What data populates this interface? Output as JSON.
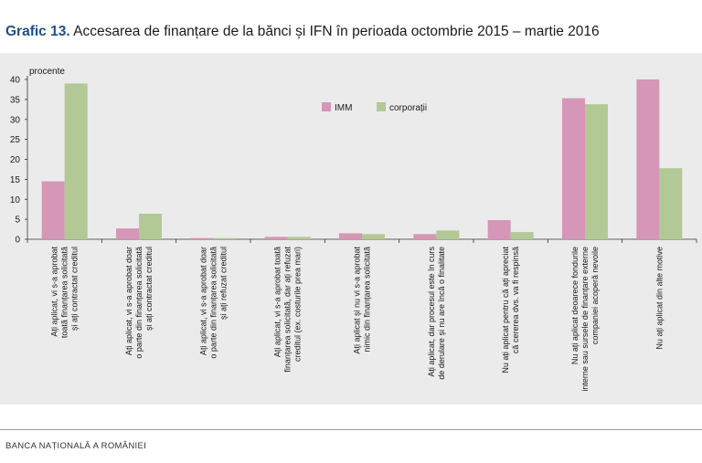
{
  "header": {
    "title_prefix": "Grafic 13.",
    "title_text": "Accesarea de finanțare de la bănci și IFN în perioada octombrie 2015 – martie 2016"
  },
  "footer": {
    "text": "BANCA NAȚIONALĂ A ROMÂNIEI"
  },
  "chart_data": {
    "type": "bar",
    "ylabel": "procente",
    "ylim": [
      0,
      40
    ],
    "yticks": [
      0,
      5,
      10,
      15,
      20,
      25,
      30,
      35,
      40
    ],
    "legend_position": "top-center",
    "categories": [
      [
        "Ați aplicat, vi s-a aprobat",
        "toată finanțarea solicitată",
        "și ați contractat creditul"
      ],
      [
        "Ați aplicat, vi s-a aprobat doar",
        "o parte din finanțarea solicitată",
        "și ați contractat creditul"
      ],
      [
        "Ați aplicat, vi s-a aprobat doar",
        "o parte din finanțarea solicitată",
        "și ați refuzat creditul"
      ],
      [
        "Ați aplicat, vi s-a aprobat toată",
        "finanțarea solicitată, dar ați refuzat",
        "creditul (ex. costurile prea mari)"
      ],
      [
        "Ați aplicat și nu vi s-a aprobat",
        "nimic din finanțarea solicitată"
      ],
      [
        "Ați aplicat, dar procesul este în curs",
        "de derulare și nu are încă o finalitate"
      ],
      [
        "Nu ați aplicat pentru că ați apreciat",
        "că cererea dvs. va fi respinsă"
      ],
      [
        "Nu ați aplicat deoarece fondurile",
        "interne sau sursele de finanțare externe",
        "companiei acoperă nevoile"
      ],
      [
        "Nu ați aplicat din alte motive"
      ]
    ],
    "series": [
      {
        "name": "IMM",
        "color": "#d696b7",
        "values": [
          14.5,
          2.7,
          0.3,
          0.6,
          1.5,
          1.3,
          4.8,
          35.3,
          40.0
        ]
      },
      {
        "name": "corporații",
        "color": "#b2c996",
        "values": [
          39.0,
          6.4,
          0.3,
          0.6,
          1.3,
          2.2,
          1.8,
          33.8,
          17.8
        ]
      }
    ]
  }
}
